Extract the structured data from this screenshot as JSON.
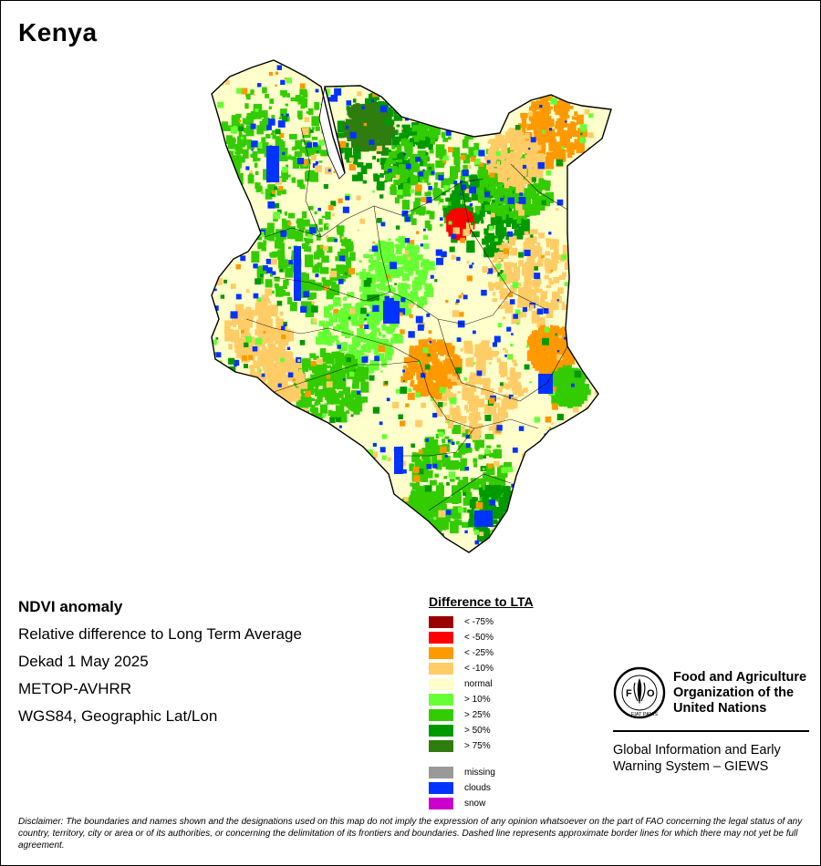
{
  "map": {
    "title": "Kenya",
    "colors": {
      "border": "#000000",
      "normal": "#ffffcc",
      "green_light": "#66ff33",
      "green_mid": "#33cc00",
      "green_dark": "#009900",
      "green_darker": "#2e7d0e",
      "tan": "#ffcc66",
      "orange": "#ff9900",
      "red": "#ff0000",
      "dark_red": "#990000",
      "clouds": "#0033ff",
      "missing": "#999999"
    }
  },
  "info": {
    "heading": "NDVI anomaly",
    "line1": "Relative difference to Long Term Average",
    "line2": "Dekad 1 May 2025",
    "line3": "METOP-AVHRR",
    "line4": "WGS84, Geographic Lat/Lon"
  },
  "legend": {
    "title": "Difference to LTA",
    "classes": [
      {
        "label": "< -75%",
        "color": "#990000"
      },
      {
        "label": "< -50%",
        "color": "#ff0000"
      },
      {
        "label": "< -25%",
        "color": "#ff9900"
      },
      {
        "label": "< -10%",
        "color": "#ffcc66"
      },
      {
        "label": "normal",
        "color": "#ffffcc"
      },
      {
        "label": "> 10%",
        "color": "#66ff33"
      },
      {
        "label": "> 25%",
        "color": "#33cc00"
      },
      {
        "label": "> 50%",
        "color": "#009900"
      },
      {
        "label": "> 75%",
        "color": "#2e7d0e"
      }
    ],
    "extra": [
      {
        "label": "missing",
        "color": "#999999"
      },
      {
        "label": "clouds",
        "color": "#0033ff"
      },
      {
        "label": "snow",
        "color": "#cc00cc"
      }
    ]
  },
  "fao": {
    "logo_text": "FAO",
    "logo_motto": "FIAT PANIS",
    "name_line1": "Food and Agriculture",
    "name_line2": "Organization of the",
    "name_line3": "United Nations",
    "giews_line1": "Global Information and Early",
    "giews_line2": "Warning System – GIEWS"
  },
  "disclaimer": "Disclaimer: The boundaries and names shown and the designations used on this map do not imply the expression of any opinion whatsoever on the part of FAO concerning the legal status of any country, territory, city or area or of its authorities, or concerning the delimitation of its frontiers and boundaries. Dashed line represents approximate border lines for which there may not yet be full agreement."
}
